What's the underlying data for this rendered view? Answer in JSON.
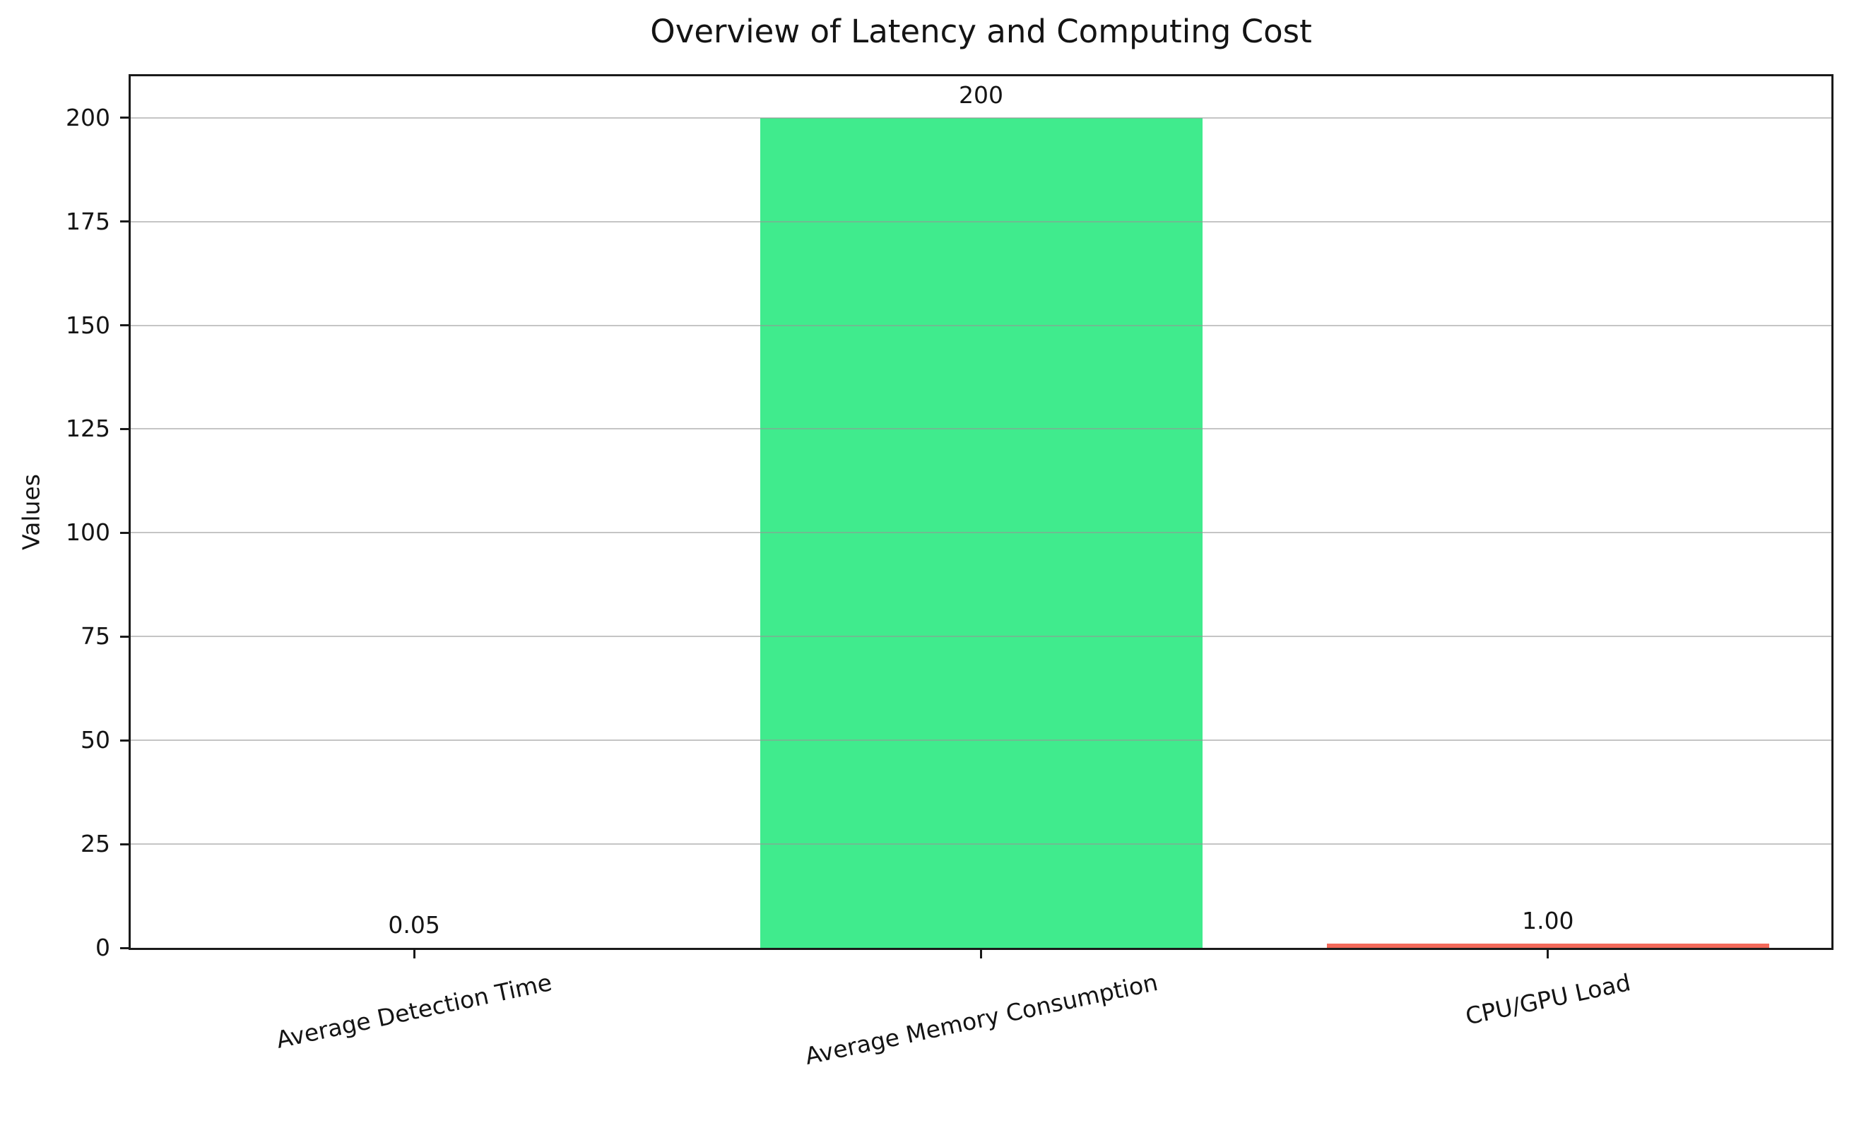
{
  "chart_data": {
    "type": "bar",
    "title": "Overview of Latency and Computing Cost",
    "xlabel": "",
    "ylabel": "Values",
    "categories": [
      "Average Detection Time",
      "Average Memory Consumption",
      "CPU/GPU Load"
    ],
    "values": [
      0.05,
      200,
      1.0
    ],
    "bar_value_labels": [
      "0.05",
      "200",
      "1.00"
    ],
    "bar_colors": [
      "none",
      "#40eb8d",
      "#f3695a"
    ],
    "yticks": [
      0,
      25,
      50,
      75,
      100,
      125,
      150,
      175,
      200
    ],
    "ytick_labels": [
      "0",
      "25",
      "50",
      "75",
      "100",
      "125",
      "150",
      "175",
      "200"
    ],
    "ylim": [
      0,
      210
    ],
    "grid": true,
    "gridline_color": "rgba(150,150,150,0.55)",
    "legend_position": "none",
    "xtick_rotation_deg": 12,
    "bar_width_fraction": 0.78
  }
}
